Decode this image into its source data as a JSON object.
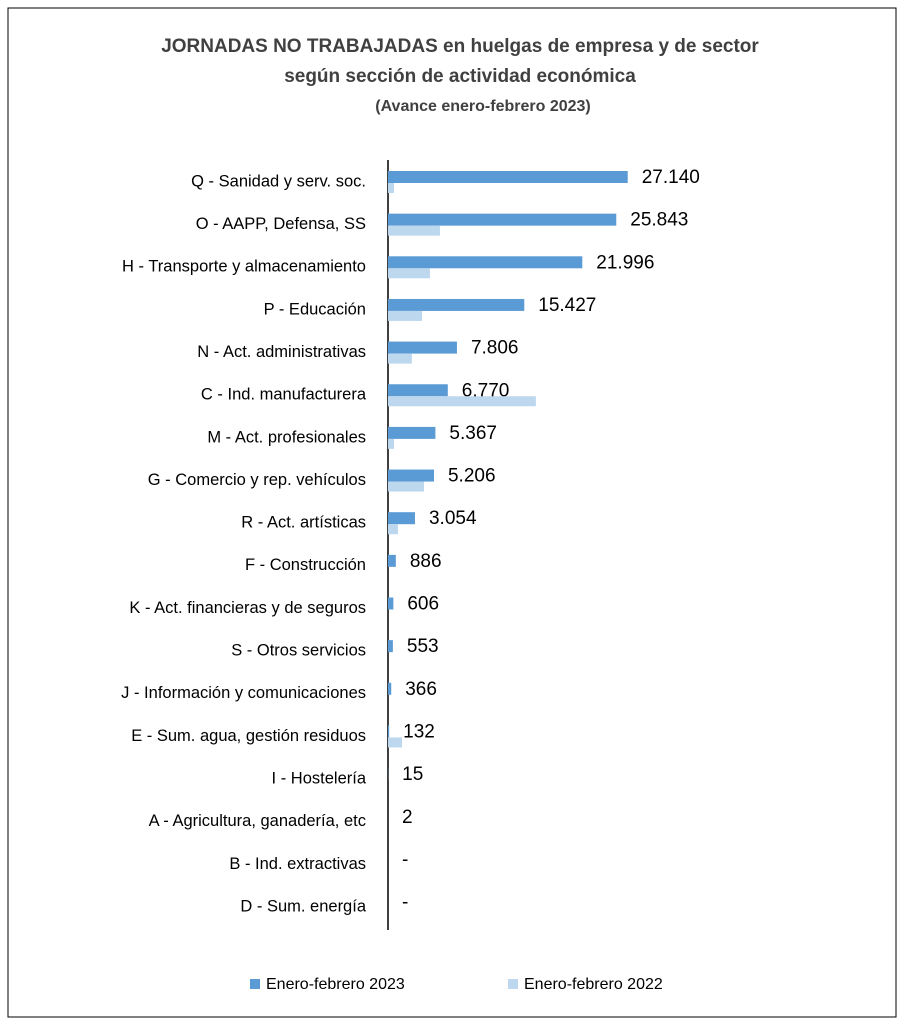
{
  "chart_data": {
    "type": "bar",
    "orientation": "horizontal",
    "title": "JORNADAS  NO TRABAJADAS  en huelgas de empresa y de sector",
    "subtitle": "según  sección de actividad  económica",
    "note": "(Avance enero-febrero 2023)",
    "categories": [
      "Q - Sanidad y serv. soc.",
      "O - AAPP, Defensa, SS",
      "H - Transporte y almacenamiento",
      "P - Educación",
      "N - Act. administrativas",
      "C - Ind. manufacturera",
      "M - Act. profesionales",
      "G - Comercio y rep. vehículos",
      "R - Act. artísticas",
      "F - Construcción",
      "K - Act. financieras y de seguros",
      "S - Otros servicios",
      "J - Información y comunicaciones",
      "E - Sum. agua, gestión residuos",
      "I - Hostelería",
      "A - Agricultura, ganadería, etc",
      "B - Ind. extractivas",
      "D - Sum. energía"
    ],
    "series": [
      {
        "name": "Enero-febrero 2023",
        "color": "#5b9bd5",
        "values": [
          27140,
          25843,
          21996,
          15427,
          7806,
          6770,
          5367,
          5206,
          3054,
          886,
          606,
          553,
          366,
          132,
          15,
          2,
          null,
          null
        ],
        "value_labels": [
          "27.140",
          "25.843",
          "21.996",
          "15.427",
          "7.806",
          "6.770",
          "5.367",
          "5.206",
          "3.054",
          "886",
          "606",
          "553",
          "366",
          "132",
          "15",
          "2",
          "-",
          "-"
        ]
      },
      {
        "name": "Enero-febrero 2022",
        "color": "#bdd7ee",
        "values": [
          680,
          5880,
          4750,
          3850,
          2700,
          16740,
          680,
          4070,
          1130,
          0,
          0,
          0,
          0,
          1580,
          0,
          0,
          0,
          0
        ]
      }
    ],
    "xlim": [
      0,
      30000
    ],
    "legend": "bottom"
  }
}
